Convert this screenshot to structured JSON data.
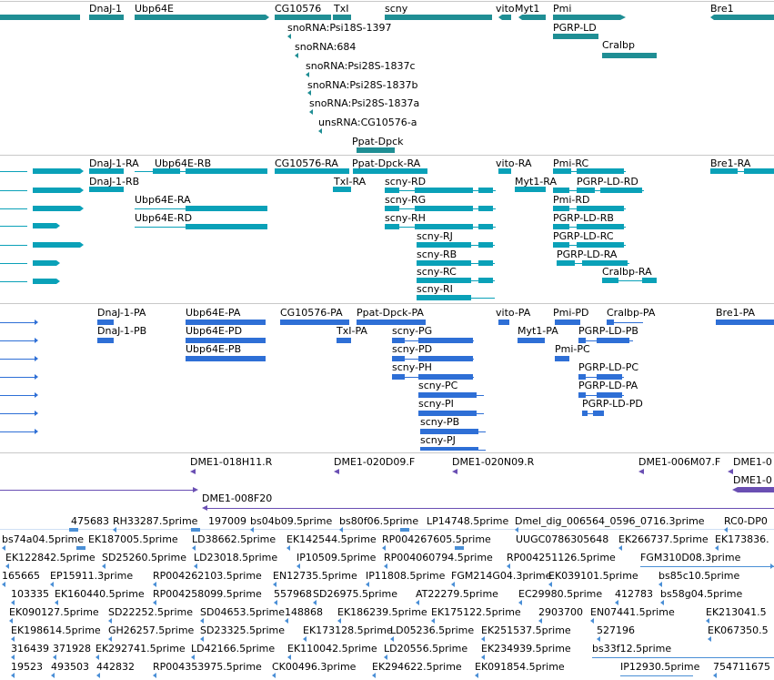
{
  "colors": {
    "gene": "#1f8e94",
    "transcript": "#0aa1b8",
    "protein": "#2e6fd6",
    "clone": "#6a4fb3",
    "est": "#4a8fd6",
    "separator": "#c8c8c8"
  },
  "tracks": {
    "genes": {
      "labels": [
        "DnaJ-1",
        "Ubp64E",
        "CG10576",
        "TxI",
        "scny",
        "vito",
        "Myt1",
        "Pmi",
        "Bre1",
        "PGRP-LD",
        "Cralbp",
        "snoRNA:Psi18S-1397",
        "snoRNA:684",
        "snoRNA:Psi28S-1837c",
        "snoRNA:Psi28S-1837b",
        "snoRNA:Psi28S-1837a",
        "unsRNA:CG10576-a",
        "Ppat-Dpck"
      ]
    },
    "transcripts": {
      "labels": [
        "DnaJ-1-RA",
        "DnaJ-1-RB",
        "Ubp64E-RB",
        "Ubp64E-RA",
        "Ubp64E-RD",
        "CG10576-RA",
        "Ppat-Dpck-RA",
        "TxI-RA",
        "scny-RD",
        "scny-RG",
        "scny-RH",
        "scny-RJ",
        "scny-RB",
        "scny-RC",
        "scny-RI",
        "vito-RA",
        "Myt1-RA",
        "Pmi-RC",
        "PGRP-LD-RD",
        "Pmi-RD",
        "PGRP-LD-RB",
        "PGRP-LD-RC",
        "PGRP-LD-RA",
        "Cralbp-RA",
        "Bre1-RA"
      ]
    },
    "proteins": {
      "labels": [
        "DnaJ-1-PA",
        "DnaJ-1-PB",
        "Ubp64E-PA",
        "Ubp64E-PD",
        "Ubp64E-PB",
        "CG10576-PA",
        "Ppat-Dpck-PA",
        "TxI-PA",
        "scny-PG",
        "scny-PD",
        "scny-PH",
        "scny-PC",
        "scny-PI",
        "scny-PB",
        "scny-PJ",
        "vito-PA",
        "Myt1-PA",
        "Pmi-PD",
        "Cralbp-PA",
        "PGRP-LD-PB",
        "Pmi-PC",
        "PGRP-LD-PC",
        "PGRP-LD-PA",
        "PGRP-LD-PD",
        "Bre1-PA"
      ]
    },
    "clones": {
      "labels": [
        "DME1-018H11.R",
        "DME1-020D09.F",
        "DME1-020N09.R",
        "DME1-006M07.F",
        "DME1-0",
        "DME1-0",
        "DME1-008F20"
      ]
    },
    "ests": {
      "rows": [
        [
          "475683",
          "RH33287.5prime",
          "197009",
          "bs04b09.5prime",
          "bs80f06.5prime",
          "LP14748.5prime",
          "Dmel_dig_006564_0596_0716.3prime",
          "RC0-DP0"
        ],
        [
          "bs74a04.5prime",
          "EK187005.5prime",
          "LD38662.5prime",
          "EK142544.5prime",
          "RP004267605.5prime",
          "UUGC0786305648",
          "EK266737.5prime",
          "EK173836."
        ],
        [
          "EK122842.5prime",
          "SD25260.5prime",
          "LD23018.5prime",
          "IP10509.5prime",
          "RP004060794.5prime",
          "RP004251126.5prime",
          "FGM310D08.3prime"
        ],
        [
          "165665",
          "EP15911.3prime",
          "RP004262103.5prime",
          "EN12735.5prime",
          "IP11808.5prime",
          "FGM214G04.3prime",
          "EK039101.5prime",
          "bs85c10.5prime"
        ],
        [
          "103335",
          "EK160440.5prime",
          "RP004258099.5prime",
          "557968",
          "SD26975.5prime",
          "AT22279.5prime",
          "EC29980.5prime",
          "412783",
          "bs58g04.5prime"
        ],
        [
          "EK090127.5prime",
          "SD22252.5prime",
          "SD04653.5prime",
          "148868",
          "EK186239.5prime",
          "EK175122.5prime",
          "2903700",
          "EN07441.5prime",
          "EK213041.5"
        ],
        [
          "EK198614.5prime",
          "GH26257.5prime",
          "SD23325.5prime",
          "EK173128.5prime",
          "LD05236.5prime",
          "EK251537.5prime",
          "527196",
          "EK067350.5"
        ],
        [
          "316439",
          "371928",
          "EK292741.5prime",
          "LD42166.5prime",
          "EK110042.5prime",
          "LD20556.5prime",
          "EK234939.5prime",
          "bs33f12.5prime"
        ],
        [
          "19523",
          "493503",
          "442832",
          "RP004353975.5prime",
          "CK00496.3prime",
          "EK294622.5prime",
          "EK091854.5prime",
          "IP12930.5prime",
          "754711675"
        ]
      ]
    }
  }
}
